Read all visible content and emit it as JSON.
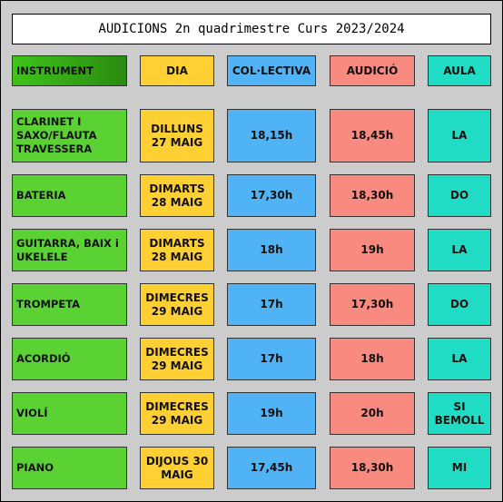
{
  "title": "AUDICIONS 2n quadrimestre Curs 2023/2024",
  "table": {
    "header": [
      "INSTRUMENT",
      "DIA",
      "COL·LECTIVA",
      "AUDICIÓ",
      "AULA"
    ],
    "rows": [
      [
        [
          "CLARINET I",
          "SAXO/FLAUTA",
          "TRAVESSERA"
        ],
        [
          "DILLUNS",
          "27 MAIG"
        ],
        [
          "18,15h"
        ],
        [
          "18,45h"
        ],
        [
          "LA"
        ]
      ],
      [
        [
          "BATERIA"
        ],
        [
          "DIMARTS",
          "28 MAIG"
        ],
        [
          "17,30h"
        ],
        [
          "18,30h"
        ],
        [
          "DO"
        ]
      ],
      [
        [
          "GUITARRA, BAIX i",
          "UKELELE"
        ],
        [
          "DIMARTS",
          "28 MAIG"
        ],
        [
          "18h"
        ],
        [
          "19h"
        ],
        [
          "LA"
        ]
      ],
      [
        [
          "TROMPETA"
        ],
        [
          "DIMECRES",
          "29 MAIG"
        ],
        [
          "17h"
        ],
        [
          "17,30h"
        ],
        [
          "DO"
        ]
      ],
      [
        [
          "ACORDIÓ"
        ],
        [
          "DIMECRES",
          "29 MAIG"
        ],
        [
          "17h"
        ],
        [
          "18h"
        ],
        [
          "LA"
        ]
      ],
      [
        [
          "VIOLÍ"
        ],
        [
          "DIMECRES",
          "29 MAIG"
        ],
        [
          "19h"
        ],
        [
          "20h"
        ],
        [
          "SI",
          "BEMOLL"
        ]
      ],
      [
        [
          "PIANO"
        ],
        [
          "DIJOUS 30",
          "MAIG"
        ],
        [
          "17,45h"
        ],
        [
          "18,30h"
        ],
        [
          "MI"
        ]
      ]
    ]
  }
}
